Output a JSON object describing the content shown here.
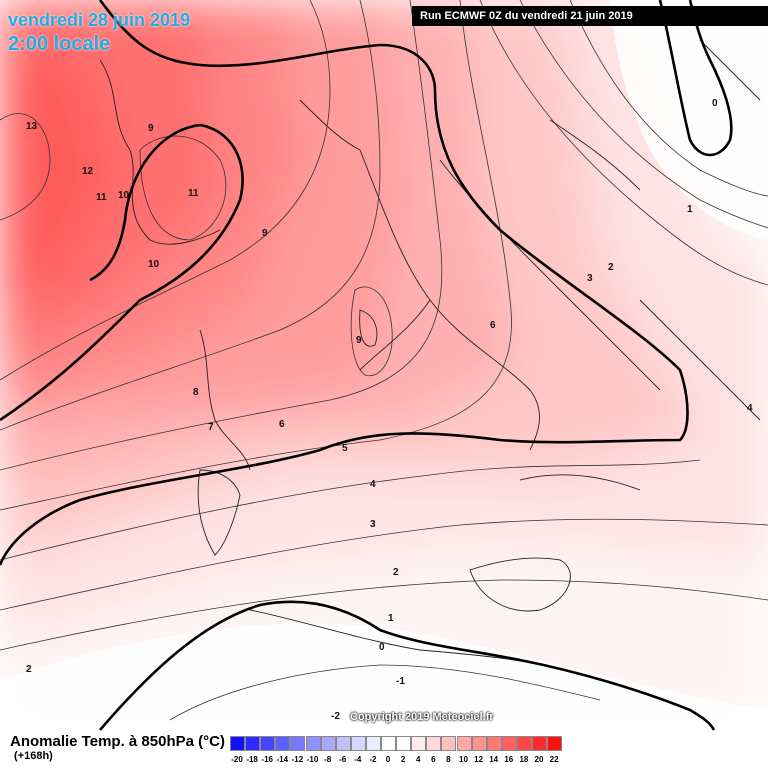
{
  "header": {
    "date": "vendredi 28 juin 2019",
    "time": "2:00 locale",
    "run_info": "Run ECMWF 0Z du vendredi 21 juin 2019"
  },
  "map": {
    "copyright": "Copyright 2019 Meteociel.fr",
    "contour_labels": [
      "13",
      "12",
      "11",
      "10",
      "9",
      "11",
      "10",
      "9",
      "9",
      "8",
      "7",
      "6",
      "6",
      "5",
      "4",
      "3",
      "2",
      "1",
      "0",
      "-1",
      "-2",
      "2",
      "4",
      "3",
      "2",
      "1",
      "0"
    ]
  },
  "legend": {
    "title": "Anomalie Temp. à 850hPa (°C)",
    "subtitle": "(+168h)",
    "ticks": [
      "-20",
      "-18",
      "-16",
      "-14",
      "-12",
      "-10",
      "-8",
      "-6",
      "-4",
      "-2",
      "0",
      "2",
      "4",
      "6",
      "8",
      "10",
      "12",
      "14",
      "16",
      "18",
      "20",
      "22"
    ],
    "colors": [
      "#1010ff",
      "#2b2bff",
      "#4646ff",
      "#5f5fff",
      "#7878ff",
      "#9090ff",
      "#a8a8ff",
      "#c0c0ff",
      "#d8d8ff",
      "#ececff",
      "#ffffff",
      "#ffffff",
      "#ffecec",
      "#ffd8d8",
      "#ffc0c0",
      "#ffa8a8",
      "#ff9090",
      "#ff7878",
      "#ff5f5f",
      "#ff4646",
      "#ff2b2b",
      "#ff1010"
    ]
  },
  "colors": {
    "title_blue": "#27a9e1",
    "run_box_bg": "#000000"
  }
}
